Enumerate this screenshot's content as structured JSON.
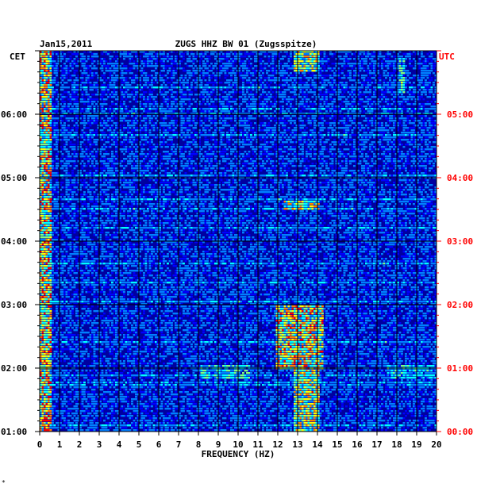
{
  "chart_data": {
    "type": "heatmap",
    "title": "ZUGS HHZ BW 01 (Zugsspitze)",
    "date": "Jan15,2011",
    "xlabel": "FREQUENCY (HZ)",
    "xlim": [
      0,
      20
    ],
    "x_ticks": [
      "0",
      "1",
      "2",
      "3",
      "4",
      "5",
      "6",
      "7",
      "8",
      "9",
      "10",
      "11",
      "12",
      "13",
      "14",
      "15",
      "16",
      "17",
      "18",
      "19",
      "20"
    ],
    "left_axis": {
      "label": "CET",
      "ticks": [
        "06:00",
        "05:00",
        "04:00",
        "03:00",
        "02:00",
        "01:00"
      ]
    },
    "right_axis": {
      "label": "UTC",
      "ticks": [
        "05:00",
        "04:00",
        "03:00",
        "02:00",
        "01:00",
        "00:00"
      ]
    },
    "time_range_cet": [
      "01:00",
      "07:00"
    ],
    "colormap": [
      "#00007f",
      "#0000ff",
      "#0080ff",
      "#00ffff",
      "#80ff80",
      "#ffff00",
      "#ff8000",
      "#ff0000"
    ],
    "background_color": "#0000a0",
    "hotspots": [
      {
        "freq": [
          0.0,
          0.5
        ],
        "time_cet": [
          "01:00",
          "07:00"
        ],
        "intensity": 0.9
      },
      {
        "freq": [
          12.8,
          14.0
        ],
        "time_cet": [
          "01:00",
          "02:00"
        ],
        "intensity": 0.8
      },
      {
        "freq": [
          11.8,
          14.2
        ],
        "time_cet": [
          "02:00",
          "03:00"
        ],
        "intensity": 0.85
      },
      {
        "freq": [
          12.3,
          14.0
        ],
        "time_cet": [
          "04:30",
          "04:40"
        ],
        "intensity": 0.8
      },
      {
        "freq": [
          12.8,
          14.0
        ],
        "time_cet": [
          "06:40",
          "07:00"
        ],
        "intensity": 0.75
      },
      {
        "freq": [
          8.0,
          10.5
        ],
        "time_cet": [
          "01:50",
          "02:05"
        ],
        "intensity": 0.55
      },
      {
        "freq": [
          17.5,
          20.0
        ],
        "time_cet": [
          "01:50",
          "02:05"
        ],
        "intensity": 0.5
      },
      {
        "freq": [
          18.1,
          18.3
        ],
        "time_cet": [
          "06:20",
          "06:55"
        ],
        "intensity": 0.6
      }
    ]
  },
  "footer_mark": "*"
}
